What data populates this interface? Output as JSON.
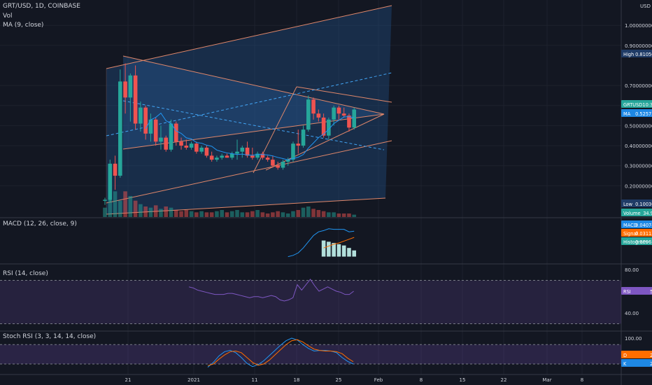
{
  "header": {
    "symbol": "GRT/USD, 1D, COINBASE",
    "vol": "Vol",
    "ma": "MA (9, close)"
  },
  "currency": "USD",
  "price_axis": {
    "ticks": [
      "1.00000000",
      "0.90000000",
      "0.70000000",
      "0.60000000",
      "0.50000000",
      "0.40000000",
      "0.30000000",
      "0.20000000"
    ]
  },
  "price_labels": {
    "high": "High",
    "high_val": "0.81050000",
    "last": "GRTUSD",
    "last_val": "10:39:16",
    "ma": "MA",
    "ma_val": "0.52575556",
    "low": "Low",
    "low_val": "0.10030000",
    "volume": "Volume",
    "volume_val": "34.993M"
  },
  "macd_panel": {
    "title": "MACD (12, 26, close, 9)",
    "macd": "MACD",
    "macd_val": "0.04074843",
    "signal": "Signal",
    "signal_val": "0.03113077",
    "hist": "Histogram",
    "hist_val": "0.00961766"
  },
  "rsi_panel": {
    "title": "RSI (14, close)",
    "ticks": [
      "80.00",
      "40.00"
    ],
    "label": "RSI",
    "val": "59.92"
  },
  "stoch_panel": {
    "title": "Stoch RSI (3, 3, 14, 14, close)",
    "ticks": [
      "100.00",
      "20.00"
    ],
    "d_label": "D",
    "d_val": "26.78",
    "k_label": "K",
    "k_val": "20.01"
  },
  "time_axis": {
    "ticks": [
      "21",
      "2021",
      "11",
      "18",
      "25",
      "Feb",
      "8",
      "15",
      "22",
      "Mar",
      "8"
    ]
  },
  "colors": {
    "up": "#26a69a",
    "down": "#ef5350",
    "ma": "#2196f3",
    "macd": "#2196f3",
    "signal": "#ff6d00",
    "rsi": "#7e57c2",
    "channel": "#e0876a"
  },
  "chart_data": {
    "type": "candlestick",
    "symbol": "GRT/USD",
    "interval": "1D",
    "exchange": "COINBASE",
    "ylim": [
      0.07,
      1.06
    ],
    "candles": [
      {
        "o": 0.125,
        "h": 0.14,
        "l": 0.105,
        "c": 0.13
      },
      {
        "o": 0.13,
        "h": 0.33,
        "l": 0.12,
        "c": 0.31
      },
      {
        "o": 0.31,
        "h": 0.35,
        "l": 0.18,
        "c": 0.25
      },
      {
        "o": 0.25,
        "h": 0.78,
        "l": 0.24,
        "c": 0.72
      },
      {
        "o": 0.72,
        "h": 0.81,
        "l": 0.56,
        "c": 0.64
      },
      {
        "o": 0.64,
        "h": 0.76,
        "l": 0.52,
        "c": 0.75
      },
      {
        "o": 0.75,
        "h": 0.8,
        "l": 0.48,
        "c": 0.51
      },
      {
        "o": 0.51,
        "h": 0.62,
        "l": 0.47,
        "c": 0.59
      },
      {
        "o": 0.59,
        "h": 0.6,
        "l": 0.43,
        "c": 0.46
      },
      {
        "o": 0.46,
        "h": 0.56,
        "l": 0.42,
        "c": 0.53
      },
      {
        "o": 0.53,
        "h": 0.54,
        "l": 0.4,
        "c": 0.42
      },
      {
        "o": 0.42,
        "h": 0.5,
        "l": 0.38,
        "c": 0.44
      },
      {
        "o": 0.44,
        "h": 0.45,
        "l": 0.37,
        "c": 0.38
      },
      {
        "o": 0.38,
        "h": 0.53,
        "l": 0.37,
        "c": 0.51
      },
      {
        "o": 0.51,
        "h": 0.52,
        "l": 0.4,
        "c": 0.42
      },
      {
        "o": 0.42,
        "h": 0.44,
        "l": 0.38,
        "c": 0.4
      },
      {
        "o": 0.4,
        "h": 0.43,
        "l": 0.38,
        "c": 0.39
      },
      {
        "o": 0.39,
        "h": 0.42,
        "l": 0.38,
        "c": 0.41
      },
      {
        "o": 0.41,
        "h": 0.42,
        "l": 0.36,
        "c": 0.37
      },
      {
        "o": 0.37,
        "h": 0.4,
        "l": 0.36,
        "c": 0.39
      },
      {
        "o": 0.39,
        "h": 0.4,
        "l": 0.34,
        "c": 0.35
      },
      {
        "o": 0.35,
        "h": 0.37,
        "l": 0.32,
        "c": 0.33
      },
      {
        "o": 0.33,
        "h": 0.35,
        "l": 0.32,
        "c": 0.34
      },
      {
        "o": 0.34,
        "h": 0.36,
        "l": 0.33,
        "c": 0.35
      },
      {
        "o": 0.35,
        "h": 0.36,
        "l": 0.34,
        "c": 0.34
      },
      {
        "o": 0.34,
        "h": 0.37,
        "l": 0.33,
        "c": 0.36
      },
      {
        "o": 0.36,
        "h": 0.43,
        "l": 0.33,
        "c": 0.37
      },
      {
        "o": 0.37,
        "h": 0.4,
        "l": 0.34,
        "c": 0.39
      },
      {
        "o": 0.39,
        "h": 0.42,
        "l": 0.34,
        "c": 0.35
      },
      {
        "o": 0.35,
        "h": 0.39,
        "l": 0.33,
        "c": 0.34
      },
      {
        "o": 0.34,
        "h": 0.37,
        "l": 0.33,
        "c": 0.36
      },
      {
        "o": 0.36,
        "h": 0.37,
        "l": 0.33,
        "c": 0.34
      },
      {
        "o": 0.34,
        "h": 0.35,
        "l": 0.32,
        "c": 0.33
      },
      {
        "o": 0.33,
        "h": 0.35,
        "l": 0.29,
        "c": 0.3
      },
      {
        "o": 0.3,
        "h": 0.32,
        "l": 0.28,
        "c": 0.29
      },
      {
        "o": 0.29,
        "h": 0.33,
        "l": 0.28,
        "c": 0.32
      },
      {
        "o": 0.32,
        "h": 0.34,
        "l": 0.3,
        "c": 0.33
      },
      {
        "o": 0.33,
        "h": 0.42,
        "l": 0.32,
        "c": 0.41
      },
      {
        "o": 0.41,
        "h": 0.48,
        "l": 0.36,
        "c": 0.4
      },
      {
        "o": 0.4,
        "h": 0.5,
        "l": 0.39,
        "c": 0.48
      },
      {
        "o": 0.48,
        "h": 0.65,
        "l": 0.47,
        "c": 0.63
      },
      {
        "o": 0.63,
        "h": 0.64,
        "l": 0.53,
        "c": 0.56
      },
      {
        "o": 0.56,
        "h": 0.58,
        "l": 0.52,
        "c": 0.54
      },
      {
        "o": 0.54,
        "h": 0.56,
        "l": 0.44,
        "c": 0.45
      },
      {
        "o": 0.45,
        "h": 0.54,
        "l": 0.43,
        "c": 0.53
      },
      {
        "o": 0.53,
        "h": 0.6,
        "l": 0.5,
        "c": 0.59
      },
      {
        "o": 0.59,
        "h": 0.6,
        "l": 0.53,
        "c": 0.56
      },
      {
        "o": 0.56,
        "h": 0.59,
        "l": 0.54,
        "c": 0.55
      },
      {
        "o": 0.55,
        "h": 0.56,
        "l": 0.47,
        "c": 0.49
      },
      {
        "o": 0.49,
        "h": 0.59,
        "l": 0.48,
        "c": 0.58
      }
    ],
    "volume": [
      8,
      30,
      22,
      14,
      22,
      18,
      14,
      11,
      9,
      8,
      10,
      7,
      9,
      8,
      6,
      5,
      6,
      5,
      4,
      5,
      4,
      4,
      5,
      6,
      4,
      5,
      6,
      4,
      4,
      5,
      6,
      4,
      3,
      4,
      5,
      4,
      3,
      5,
      6,
      8,
      9,
      7,
      6,
      5,
      4,
      4,
      3,
      3,
      3,
      2
    ],
    "volume_dir": [
      1,
      1,
      1,
      1,
      -1,
      1,
      -1,
      1,
      -1,
      1,
      -1,
      1,
      -1,
      1,
      -1,
      -1,
      -1,
      1,
      -1,
      1,
      -1,
      -1,
      1,
      1,
      -1,
      1,
      1,
      1,
      -1,
      -1,
      1,
      -1,
      -1,
      -1,
      -1,
      1,
      1,
      1,
      -1,
      1,
      1,
      -1,
      -1,
      -1,
      1,
      1,
      -1,
      -1,
      -1,
      1
    ],
    "macd": {
      "macd_line": [
        0.0,
        0.002,
        0.006,
        0.014,
        0.024,
        0.034,
        0.04,
        0.042,
        0.045,
        0.044,
        0.044,
        0.044,
        0.04,
        0.041
      ],
      "signal_line": [
        null,
        null,
        null,
        null,
        null,
        null,
        null,
        0.014,
        0.017,
        0.02,
        0.022,
        0.025,
        0.028,
        0.031
      ],
      "histogram": [
        null,
        null,
        null,
        null,
        null,
        null,
        null,
        0.026,
        0.024,
        0.022,
        0.02,
        0.018,
        0.014,
        0.01
      ]
    },
    "rsi": [
      64,
      63,
      61,
      60,
      59,
      58,
      57,
      57,
      57,
      58,
      58,
      57,
      56,
      55,
      54,
      55,
      55,
      54,
      55,
      56,
      55,
      52,
      51,
      52,
      54,
      66,
      61,
      66,
      71,
      65,
      60,
      62,
      64,
      62,
      60,
      59,
      57,
      57,
      60
    ],
    "rsi_bands": [
      70,
      30
    ],
    "stoch_k": [
      10,
      25,
      45,
      58,
      62,
      55,
      40,
      22,
      12,
      18,
      30,
      46,
      62,
      78,
      92,
      100,
      94,
      80,
      68,
      60,
      62,
      62,
      60,
      55,
      40,
      28,
      20
    ],
    "stoch_d": [
      15,
      20,
      35,
      48,
      58,
      60,
      55,
      40,
      25,
      16,
      20,
      32,
      48,
      64,
      80,
      92,
      95,
      88,
      76,
      66,
      62,
      60,
      60,
      58,
      52,
      38,
      27
    ],
    "stoch_bands": [
      80,
      20
    ]
  }
}
